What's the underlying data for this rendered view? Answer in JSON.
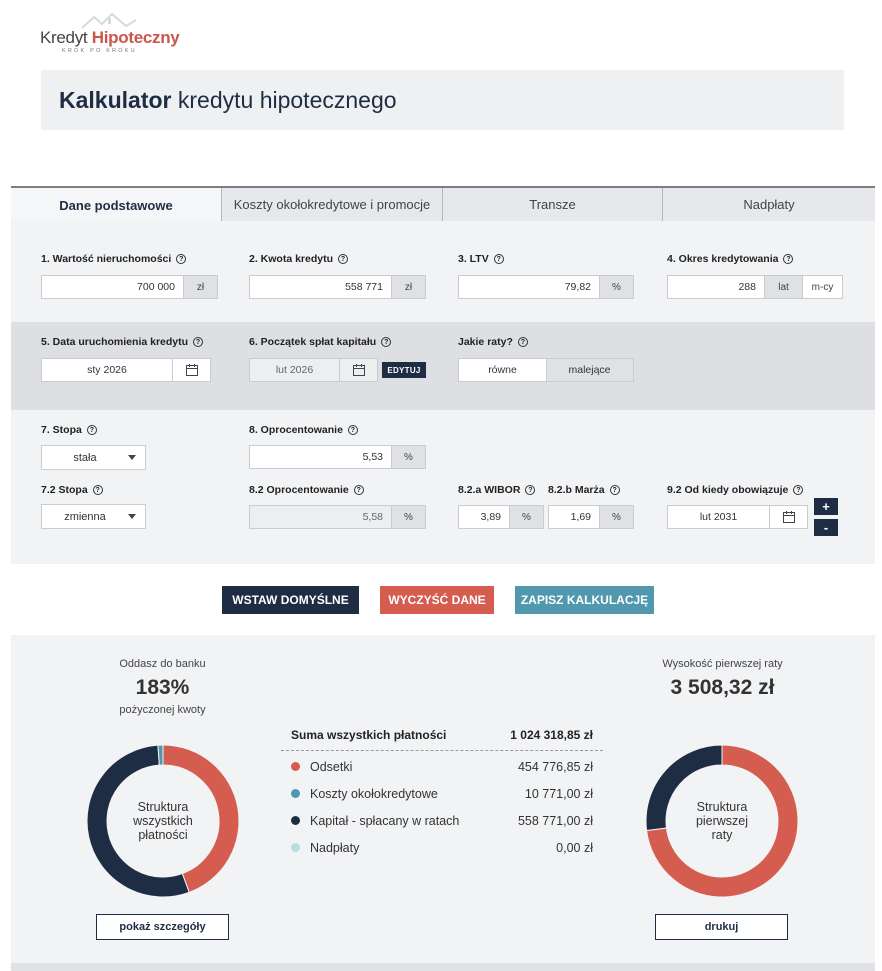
{
  "logo": {
    "word1": "Kredyt",
    "word2": "Hipoteczny",
    "tagline": "KROK PO KROKU"
  },
  "page_title": {
    "bold": "Kalkulator",
    "rest": " kredytu hipotecznego"
  },
  "tabs": [
    {
      "label": "Dane podstawowe"
    },
    {
      "label": "Koszty okołokredytowe i promocje"
    },
    {
      "label": "Transze"
    },
    {
      "label": "Nadpłaty"
    }
  ],
  "fields": {
    "wartosc": {
      "label": "1. Wartość nieruchomości",
      "value": "700 000",
      "unit": "zł"
    },
    "kwota": {
      "label": "2. Kwota kredytu",
      "value": "558 771",
      "unit": "zł"
    },
    "ltv": {
      "label": "3. LTV",
      "value": "79,82",
      "unit": "%"
    },
    "okres": {
      "label": "4. Okres kredytowania",
      "value": "288",
      "unit1": "lat",
      "unit2": "m-cy"
    },
    "data_uruch": {
      "label": "5. Data uruchomienia kredytu",
      "value": "sty 2026"
    },
    "poczatek": {
      "label": "6. Początek spłat kapitału",
      "value": "lut 2026",
      "edit": "EDYTUJ"
    },
    "raty": {
      "label": "Jakie raty?",
      "opt1": "równe",
      "opt2": "malejące"
    },
    "stopa": {
      "label": "7. Stopa",
      "value": "stała"
    },
    "oprocentowanie": {
      "label": "8. Oprocentowanie",
      "value": "5,53",
      "unit": "%"
    },
    "stopa2": {
      "label": "7.2 Stopa",
      "value": "zmienna"
    },
    "oprocentowanie2": {
      "label": "8.2  Oprocentowanie",
      "value": "5,58",
      "unit": "%"
    },
    "wibor": {
      "label": "8.2.a WIBOR",
      "value": "3,89",
      "unit": "%"
    },
    "marza": {
      "label": "8.2.b Marża",
      "value": "1,69",
      "unit": "%"
    },
    "od_kiedy": {
      "label": "9.2 Od kiedy obowiązuje",
      "value": "lut 2031"
    },
    "plus": "+",
    "minus": "-"
  },
  "buttons": {
    "default": "WSTAW DOMYŚLNE",
    "clear": "WYCZYŚĆ DANE",
    "save": "ZAPISZ KALKULACJĘ"
  },
  "results": {
    "left_top": "Oddasz do banku",
    "left_big": "183%",
    "left_bottom": "pożyczonej kwoty",
    "left_donut_l1": "Struktura",
    "left_donut_l2": "wszystkich",
    "left_donut_l3": "płatności",
    "details_button": "pokaż szczegóły",
    "right_top": "Wysokość pierwszej raty",
    "right_big": "3 508,32 zł",
    "right_donut_l1": "Struktura",
    "right_donut_l2": "pierwszej",
    "right_donut_l3": "raty",
    "print_button": "drukuj",
    "sum_label": "Suma wszystkich płatności",
    "sum_value": "1 024 318,85 zł",
    "rows": [
      {
        "name": "Odsetki",
        "amount": "454 776,85 zł",
        "color": "#d45d4f"
      },
      {
        "name": "Koszty okołokredytowe",
        "amount": "10 771,00 zł",
        "color": "#4f98ad"
      },
      {
        "name": "Kapitał - spłacany w ratach",
        "amount": "558 771,00 zł",
        "color": "#1e2d44"
      },
      {
        "name": "Nadpłaty",
        "amount": "0,00 zł",
        "color": "#b7dde3"
      }
    ]
  },
  "donut_left": {
    "odsetki": 454776.85,
    "koszty": 10771.0,
    "kapital": 558771.0
  },
  "donut_right": {
    "odsetki_share": 0.73,
    "kapital_share": 0.27
  }
}
